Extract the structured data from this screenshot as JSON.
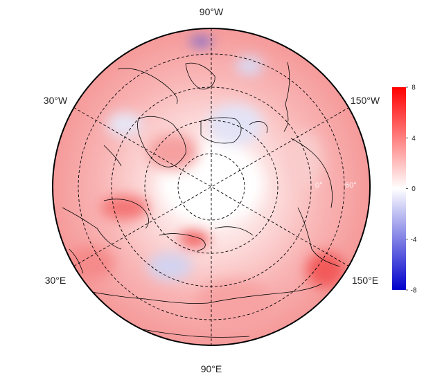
{
  "map": {
    "projection": "north-polar-stereographic",
    "longitude_labels": {
      "top": "90°W",
      "upper_left": "30°W",
      "upper_right": "150°W",
      "lower_left": "30°E",
      "lower_right": "150°E",
      "bottom": "90°E"
    },
    "latitude_labels": [
      "0°",
      "60°"
    ],
    "colormap": {
      "low": "#0000cc",
      "mid": "#ffffff",
      "high": "#ff0000"
    }
  },
  "colorbar": {
    "min": -8,
    "max": 8,
    "ticks": [
      "8",
      "4",
      "0",
      "-4",
      "-8"
    ]
  }
}
